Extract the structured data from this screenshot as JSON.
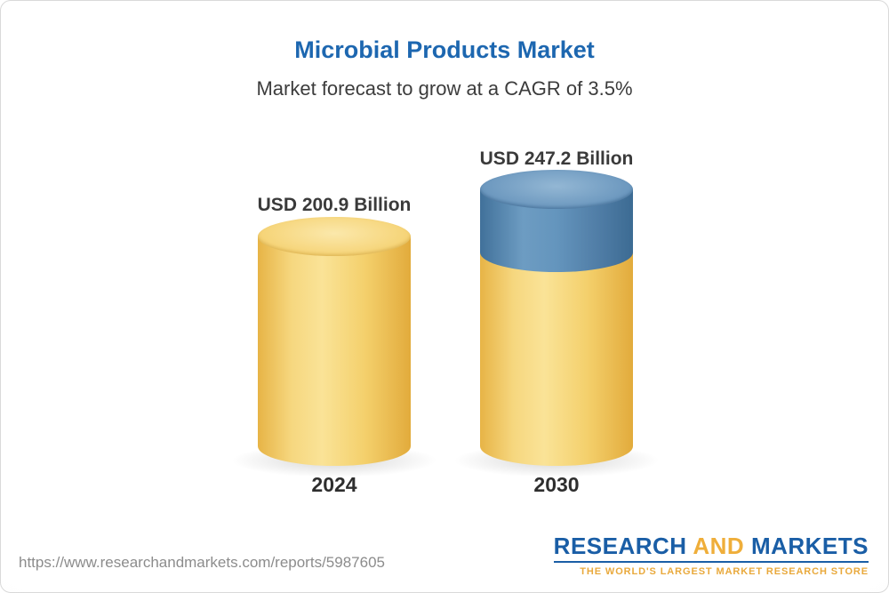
{
  "title": "Microbial Products Market",
  "subtitle": "Market forecast to grow at a CAGR of 3.5%",
  "chart_data": {
    "type": "bar",
    "bar_style": "3d-cylinder",
    "categories": [
      "2024",
      "2030"
    ],
    "values": [
      200.9,
      247.2
    ],
    "value_labels": [
      "USD 200.9 Billion",
      "USD 247.2 Billion"
    ],
    "unit": "USD Billion",
    "title": "Microbial Products Market",
    "subtitle": "Market forecast to grow at a CAGR of 3.5%",
    "cagr_pct": 3.5,
    "grid": false,
    "legend_position": "none",
    "colors": {
      "bar_base": "#F2CB62",
      "bar_growth_segment": "#5D8CB4",
      "title_text": "#1D67B0"
    }
  },
  "footer": {
    "url": "https://www.researchandmarkets.com/reports/5987605",
    "logo": {
      "word_research": "RESEARCH",
      "word_and": "AND",
      "word_markets": "MARKETS",
      "tagline": "THE WORLD'S LARGEST MARKET RESEARCH STORE"
    }
  }
}
